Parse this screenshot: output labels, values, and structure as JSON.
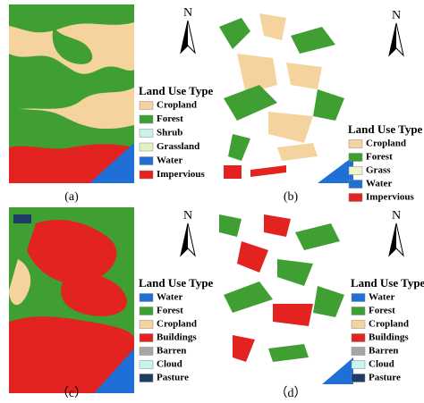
{
  "panels": [
    {
      "label": "(a)",
      "north": "N",
      "legend": {
        "title": "Land Use Type",
        "items": [
          {
            "name": "Cropland",
            "color": "#f5d39e"
          },
          {
            "name": "Forest",
            "color": "#3f9f32"
          },
          {
            "name": "Shrub",
            "color": "#c8f2ea"
          },
          {
            "name": "Grassland",
            "color": "#dff2c4"
          },
          {
            "name": "Water",
            "color": "#1f6fd6"
          },
          {
            "name": "Impervious",
            "color": "#e2231f"
          }
        ]
      }
    },
    {
      "label": "(b)",
      "north": "N",
      "legend": {
        "title": "Land Use Type",
        "items": [
          {
            "name": "Cropland",
            "color": "#f5d39e"
          },
          {
            "name": "Forest",
            "color": "#3f9f32"
          },
          {
            "name": "Grass",
            "color": "#eef5c8"
          },
          {
            "name": "Water",
            "color": "#1f6fd6"
          },
          {
            "name": "Impervious",
            "color": "#e2231f"
          }
        ]
      }
    },
    {
      "label": "（c）",
      "north": "N",
      "legend": {
        "title": "Land Use Type",
        "items": [
          {
            "name": "Water",
            "color": "#1f6fd6"
          },
          {
            "name": "Forest",
            "color": "#3f9f32"
          },
          {
            "name": "Cropland",
            "color": "#f5d39e"
          },
          {
            "name": "Buildings",
            "color": "#e2231f"
          },
          {
            "name": "Barren",
            "color": "#a6a6a6"
          },
          {
            "name": "Cloud",
            "color": "#c8f5ee"
          },
          {
            "name": "Pasture",
            "color": "#1d3d66"
          }
        ]
      }
    },
    {
      "label": "（d）",
      "north": "N",
      "legend": {
        "title": "Land Use Type",
        "items": [
          {
            "name": "Water",
            "color": "#1f6fd6"
          },
          {
            "name": "Forest",
            "color": "#3f9f32"
          },
          {
            "name": "Cropland",
            "color": "#f5d39e"
          },
          {
            "name": "Buildings",
            "color": "#e2231f"
          },
          {
            "name": "Barren",
            "color": "#a6a6a6"
          },
          {
            "name": "Cloud",
            "color": "#c8f5ee"
          },
          {
            "name": "Pasture",
            "color": "#1d3d66"
          }
        ]
      }
    }
  ]
}
